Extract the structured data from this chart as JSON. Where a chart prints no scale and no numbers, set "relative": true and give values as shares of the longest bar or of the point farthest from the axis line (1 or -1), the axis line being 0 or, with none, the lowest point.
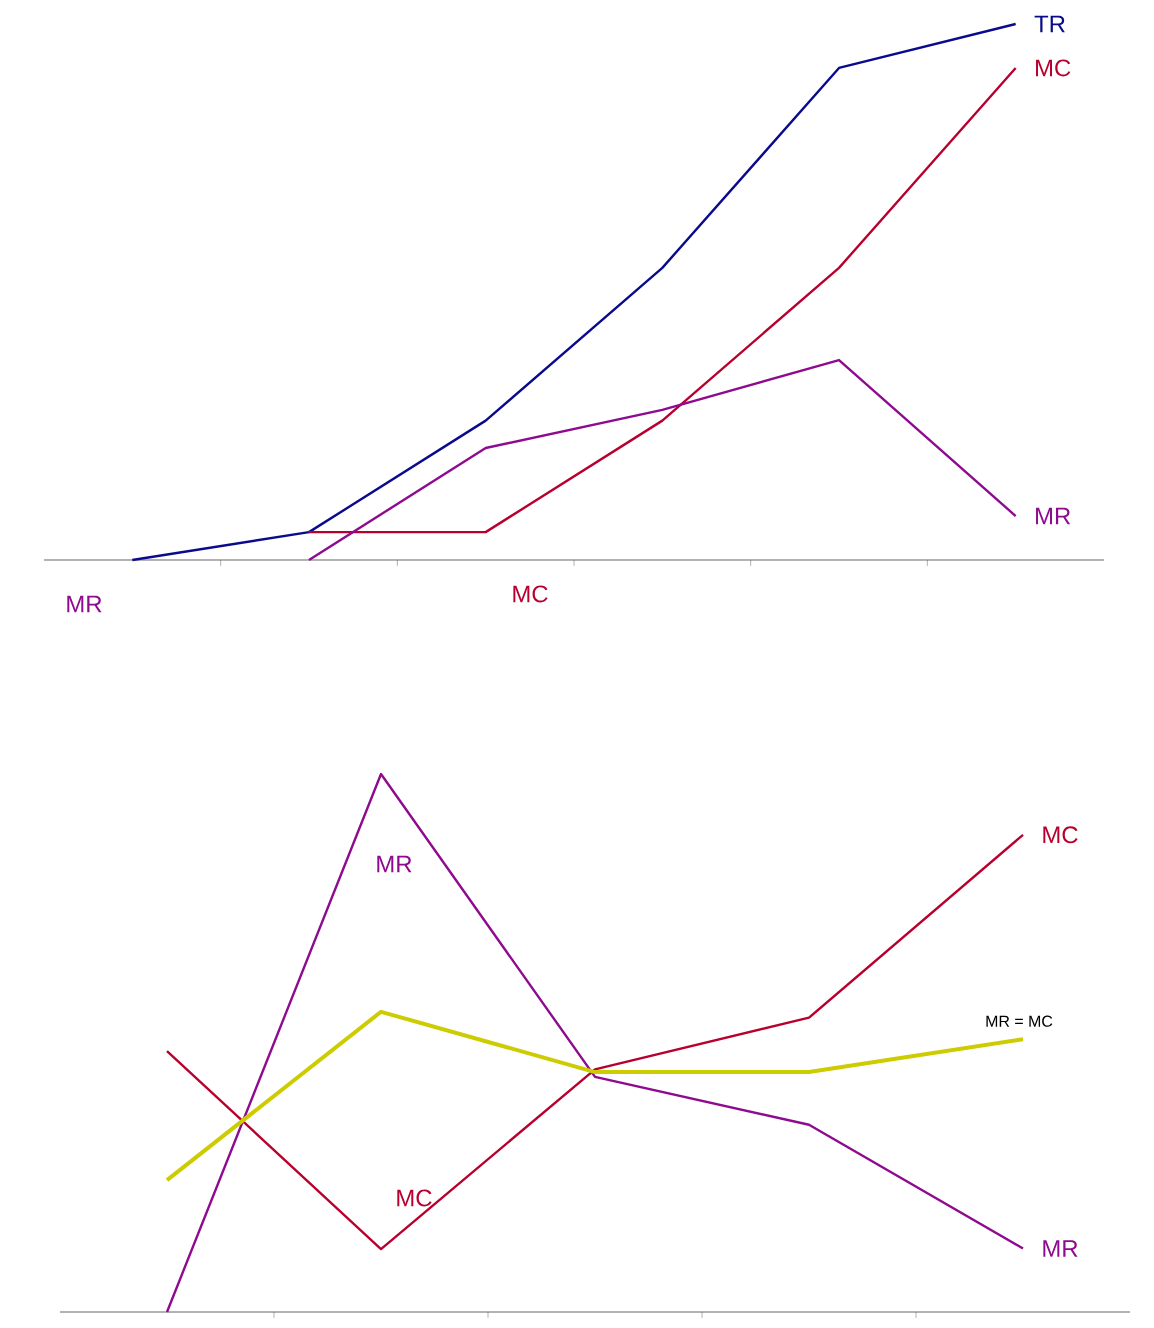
{
  "chart_data": [
    {
      "type": "line",
      "relative": true,
      "marker": "none",
      "categories": [
        null,
        null,
        null,
        null,
        null,
        null
      ],
      "series": [
        {
          "name": "TR",
          "color": "#0a0a8c",
          "values": [
            0,
            0.052,
            0.26,
            0.545,
            0.918,
            1
          ]
        },
        {
          "name": "MC",
          "color": "#b8002e",
          "values": [
            null,
            0.052,
            0.052,
            0.26,
            0.545,
            0.918
          ]
        },
        {
          "name": "MR",
          "color": "#8e0a8e",
          "values": [
            null,
            0,
            0.209,
            0.28,
            0.373,
            0.082
          ]
        }
      ],
      "annotations": [
        "MR",
        "MC"
      ]
    },
    {
      "type": "line",
      "relative": true,
      "marker": "none",
      "categories": [
        null,
        null,
        null,
        null,
        null
      ],
      "series": [
        {
          "name": "MR",
          "color": "#8e0a8e",
          "values": [
            0,
            1,
            0.437,
            0.348,
            0.118
          ]
        },
        {
          "name": "MC",
          "color": "#b8002e",
          "values": [
            0.485,
            0.117,
            0.451,
            0.547,
            0.887
          ]
        },
        {
          "name": "MR = MC",
          "color": "#cccc00",
          "values": [
            0.245,
            0.558,
            0.446,
            0.446,
            0.507
          ]
        }
      ],
      "annotations": [
        "MR",
        "MC"
      ]
    }
  ]
}
